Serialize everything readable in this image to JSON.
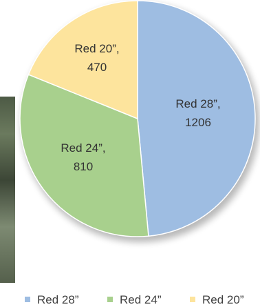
{
  "chart_data": {
    "type": "pie",
    "slices": [
      {
        "label": "Red 28”",
        "value": 1206,
        "color": "#9ebde2"
      },
      {
        "label": "Red 24”",
        "value": 810,
        "color": "#a8d08d"
      },
      {
        "label": "Red 20”",
        "value": 470,
        "color": "#fde49d"
      }
    ],
    "legend_placement": "bottom"
  }
}
